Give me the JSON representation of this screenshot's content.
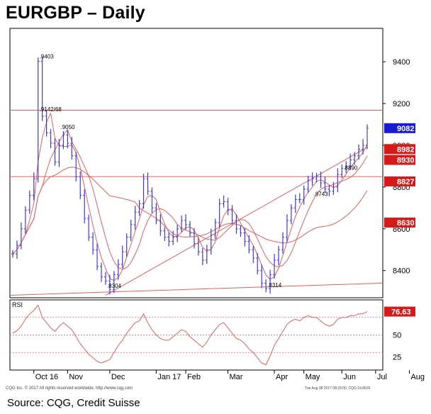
{
  "title": "EURGBP – Daily",
  "source": "Source: CQG, Credit Suisse",
  "credit": "CQG Inc. © 2017 All rights reserved worldwide. http://www.cqg.com",
  "timestamp": "Tue Aug 08 2017 08:29:00, CQG 19.8026",
  "chart_data": [
    {
      "type": "line",
      "title": "EURGBP – Daily",
      "subtype": "candlestick",
      "x_ticks": [
        "Oct 16",
        "Nov",
        "Dec",
        "Jan 17",
        "Feb",
        "Mar",
        "Apr",
        "May",
        "Jun",
        "Jul",
        "Aug"
      ],
      "y_ticks": [
        8400,
        8600,
        8800,
        9000,
        9200,
        9400
      ],
      "ylim": [
        8270,
        9560
      ],
      "grid": false,
      "series": [
        {
          "values": [
            8480,
            8520,
            8600,
            8690,
            8760,
            8840,
            9402,
            9140,
            9060,
            9010,
            8920,
            9000,
            9050,
            9010,
            8950,
            8850,
            8760,
            8650,
            8560,
            8500,
            8420,
            8370,
            8350,
            8310,
            8380,
            8430,
            8490,
            8560,
            8620,
            8680,
            8720,
            8840,
            8780,
            8700,
            8640,
            8590,
            8560,
            8540,
            8560,
            8600,
            8640,
            8620,
            8580,
            8530,
            8490,
            8450,
            8500,
            8570,
            8630,
            8720,
            8730,
            8690,
            8640,
            8600,
            8580,
            8540,
            8500,
            8460,
            8400,
            8340,
            8314,
            8380,
            8450,
            8500,
            8560,
            8640,
            8700,
            8740,
            8740,
            8790,
            8830,
            8840,
            8850,
            8820,
            8790,
            8780,
            8800,
            8860,
            8890,
            8900,
            8930,
            8950,
            8980,
            9000,
            9082
          ]
        }
      ],
      "annotations": [
        {
          "text": ".9403",
          "x": 6,
          "y": 9402
        },
        {
          "text": ".9142/68",
          "x": 6,
          "y": 9150
        },
        {
          "text": ".9050",
          "x": 11,
          "y": 9065
        },
        {
          "text": ".8304",
          "x": 22,
          "y": 8304
        },
        {
          "text": ".8314",
          "x": 60,
          "y": 8308
        },
        {
          "text": ".8743",
          "x": 71,
          "y": 8743
        },
        {
          "text": ".8890",
          "x": 78,
          "y": 8870
        }
      ],
      "horizontal_levels": [
        9168,
        8850
      ],
      "right_labels": [
        {
          "text": "9082",
          "value": 9082,
          "color": "#1a1ad6"
        },
        {
          "text": "8982",
          "value": 8982,
          "color": "#d61a1a"
        },
        {
          "text": "8930",
          "value": 8930,
          "color": "#d61a1a"
        },
        {
          "text": "8827",
          "value": 8827,
          "color": "#d61a1a"
        },
        {
          "text": "8630",
          "value": 8630,
          "color": "#d61a1a"
        }
      ]
    },
    {
      "type": "line",
      "title": "RSI",
      "y_ticks": [
        25,
        50
      ],
      "ylim": [
        10,
        90
      ],
      "reference_levels": [
        30,
        50,
        70
      ],
      "last_label": "76.63",
      "series": [
        {
          "values": [
            52,
            55,
            60,
            68,
            74,
            78,
            84,
            70,
            64,
            58,
            54,
            60,
            64,
            60,
            56,
            48,
            40,
            34,
            28,
            24,
            20,
            18,
            20,
            22,
            30,
            38,
            44,
            52,
            58,
            64,
            66,
            74,
            64,
            56,
            50,
            46,
            44,
            44,
            48,
            52,
            56,
            54,
            48,
            44,
            40,
            36,
            42,
            50,
            56,
            62,
            64,
            58,
            52,
            46,
            44,
            40,
            34,
            30,
            24,
            18,
            16,
            26,
            38,
            46,
            54,
            62,
            66,
            68,
            66,
            70,
            72,
            70,
            70,
            66,
            62,
            60,
            62,
            68,
            70,
            70,
            72,
            72,
            74,
            74,
            76.63
          ]
        }
      ]
    }
  ],
  "colors": {
    "candle": "#3b3bd9",
    "ma": "#e06060",
    "trend": "#e06060",
    "level": "#e06060",
    "rsi": "#e06060",
    "label_blue": "#1a1ad6",
    "label_red": "#d61a1a"
  }
}
